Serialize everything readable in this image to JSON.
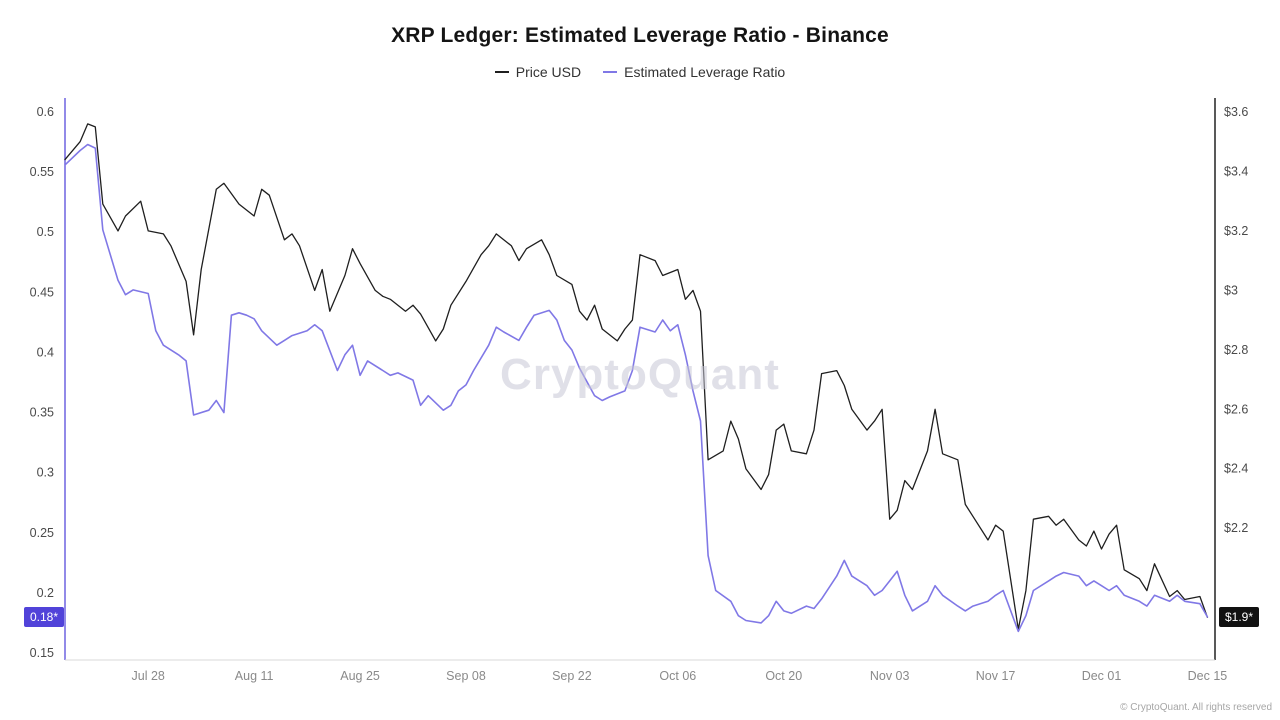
{
  "watermark": "CryptoQuant",
  "footer": "© CryptoQuant. All rights reserved",
  "left_value_tag": {
    "label": "0.18*",
    "value": 0.18,
    "color": "#5143d9"
  },
  "right_value_tag": {
    "label": "$1.9*",
    "value": 1.9,
    "color": "#111111"
  },
  "colors": {
    "price_line": "#1f1f1f",
    "leverage_line": "#8078e6",
    "left_axis_spine": "#6f63e0",
    "right_axis_spine": "#222222",
    "bottom_axis_line": "#d8d8d8",
    "tick_label": "#4a4a4a",
    "x_tick_label": "#8a8a8a"
  },
  "chart_data": {
    "type": "line",
    "title": "XRP Ledger: Estimated Leverage Ratio - Binance",
    "legend_position": "top-center",
    "grid": false,
    "x_axis": {
      "min": 0,
      "max": 152,
      "unit": "days from chart start (~Jul 17) to end (~Dec 17)",
      "ticks": [
        {
          "v": 11,
          "label": "Jul 28"
        },
        {
          "v": 25,
          "label": "Aug 11"
        },
        {
          "v": 39,
          "label": "Aug 25"
        },
        {
          "v": 53,
          "label": "Sep 08"
        },
        {
          "v": 67,
          "label": "Sep 22"
        },
        {
          "v": 81,
          "label": "Oct 06"
        },
        {
          "v": 95,
          "label": "Oct 20"
        },
        {
          "v": 109,
          "label": "Nov 03"
        },
        {
          "v": 123,
          "label": "Nov 17"
        },
        {
          "v": 137,
          "label": "Dec 01"
        },
        {
          "v": 151,
          "label": "Dec 15"
        }
      ]
    },
    "left_axis": {
      "title": "Estimated Leverage Ratio",
      "min": 0.15,
      "max": 0.6,
      "ticks": [
        {
          "v": 0.6,
          "label": "0.6"
        },
        {
          "v": 0.55,
          "label": "0.55"
        },
        {
          "v": 0.5,
          "label": "0.5"
        },
        {
          "v": 0.45,
          "label": "0.45"
        },
        {
          "v": 0.4,
          "label": "0.4"
        },
        {
          "v": 0.35,
          "label": "0.35"
        },
        {
          "v": 0.3,
          "label": "0.3"
        },
        {
          "v": 0.25,
          "label": "0.25"
        },
        {
          "v": 0.2,
          "label": "0.2"
        },
        {
          "v": 0.15,
          "label": "0.15"
        }
      ]
    },
    "right_axis": {
      "title": "Price USD",
      "min": 1.78,
      "max": 3.6,
      "ticks": [
        {
          "v": 3.6,
          "label": "$3.6"
        },
        {
          "v": 3.4,
          "label": "$3.4"
        },
        {
          "v": 3.2,
          "label": "$3.2"
        },
        {
          "v": 3.0,
          "label": "$3"
        },
        {
          "v": 2.8,
          "label": "$2.8"
        },
        {
          "v": 2.6,
          "label": "$2.6"
        },
        {
          "v": 2.4,
          "label": "$2.4"
        },
        {
          "v": 2.2,
          "label": "$2.2"
        }
      ]
    },
    "series": [
      {
        "name": "Price USD",
        "axis": "right",
        "color": "#1f1f1f",
        "width": 1.3,
        "current_value_label": "$1.9*",
        "points": [
          [
            0,
            3.44
          ],
          [
            2,
            3.5
          ],
          [
            3,
            3.56
          ],
          [
            4,
            3.55
          ],
          [
            5,
            3.29
          ],
          [
            7,
            3.2
          ],
          [
            8,
            3.25
          ],
          [
            10,
            3.3
          ],
          [
            11,
            3.2
          ],
          [
            13,
            3.19
          ],
          [
            14,
            3.15
          ],
          [
            16,
            3.03
          ],
          [
            17,
            2.85
          ],
          [
            18,
            3.07
          ],
          [
            20,
            3.34
          ],
          [
            21,
            3.36
          ],
          [
            23,
            3.29
          ],
          [
            25,
            3.25
          ],
          [
            26,
            3.34
          ],
          [
            27,
            3.32
          ],
          [
            29,
            3.17
          ],
          [
            30,
            3.19
          ],
          [
            31,
            3.15
          ],
          [
            33,
            3.0
          ],
          [
            34,
            3.07
          ],
          [
            35,
            2.93
          ],
          [
            37,
            3.05
          ],
          [
            38,
            3.14
          ],
          [
            39,
            3.09
          ],
          [
            41,
            3.0
          ],
          [
            42,
            2.98
          ],
          [
            43,
            2.97
          ],
          [
            45,
            2.93
          ],
          [
            46,
            2.95
          ],
          [
            47,
            2.92
          ],
          [
            49,
            2.83
          ],
          [
            50,
            2.87
          ],
          [
            51,
            2.95
          ],
          [
            53,
            3.03
          ],
          [
            55,
            3.12
          ],
          [
            56,
            3.15
          ],
          [
            57,
            3.19
          ],
          [
            59,
            3.15
          ],
          [
            60,
            3.1
          ],
          [
            61,
            3.14
          ],
          [
            63,
            3.17
          ],
          [
            64,
            3.12
          ],
          [
            65,
            3.05
          ],
          [
            67,
            3.02
          ],
          [
            68,
            2.93
          ],
          [
            69,
            2.9
          ],
          [
            70,
            2.95
          ],
          [
            71,
            2.87
          ],
          [
            73,
            2.83
          ],
          [
            74,
            2.87
          ],
          [
            75,
            2.9
          ],
          [
            76,
            3.12
          ],
          [
            78,
            3.1
          ],
          [
            79,
            3.05
          ],
          [
            81,
            3.07
          ],
          [
            82,
            2.97
          ],
          [
            83,
            3.0
          ],
          [
            84,
            2.93
          ],
          [
            85,
            2.43
          ],
          [
            87,
            2.46
          ],
          [
            88,
            2.56
          ],
          [
            89,
            2.5
          ],
          [
            90,
            2.4
          ],
          [
            92,
            2.33
          ],
          [
            93,
            2.38
          ],
          [
            94,
            2.53
          ],
          [
            95,
            2.55
          ],
          [
            96,
            2.46
          ],
          [
            98,
            2.45
          ],
          [
            99,
            2.53
          ],
          [
            100,
            2.72
          ],
          [
            102,
            2.73
          ],
          [
            103,
            2.68
          ],
          [
            104,
            2.6
          ],
          [
            106,
            2.53
          ],
          [
            107,
            2.56
          ],
          [
            108,
            2.6
          ],
          [
            109,
            2.23
          ],
          [
            110,
            2.26
          ],
          [
            111,
            2.36
          ],
          [
            112,
            2.33
          ],
          [
            114,
            2.46
          ],
          [
            115,
            2.6
          ],
          [
            116,
            2.45
          ],
          [
            118,
            2.43
          ],
          [
            119,
            2.28
          ],
          [
            120,
            2.24
          ],
          [
            122,
            2.16
          ],
          [
            123,
            2.21
          ],
          [
            124,
            2.19
          ],
          [
            126,
            1.86
          ],
          [
            127,
            1.99
          ],
          [
            128,
            2.23
          ],
          [
            130,
            2.24
          ],
          [
            131,
            2.21
          ],
          [
            132,
            2.23
          ],
          [
            134,
            2.16
          ],
          [
            135,
            2.14
          ],
          [
            136,
            2.19
          ],
          [
            137,
            2.13
          ],
          [
            138,
            2.18
          ],
          [
            139,
            2.21
          ],
          [
            140,
            2.06
          ],
          [
            142,
            2.03
          ],
          [
            143,
            1.99
          ],
          [
            144,
            2.08
          ],
          [
            146,
            1.97
          ],
          [
            147,
            1.99
          ],
          [
            148,
            1.96
          ],
          [
            150,
            1.97
          ],
          [
            151,
            1.9
          ]
        ]
      },
      {
        "name": "Estimated Leverage Ratio",
        "axis": "left",
        "color": "#8078e6",
        "width": 1.6,
        "current_value_label": "0.18*",
        "points": [
          [
            0,
            0.556
          ],
          [
            2,
            0.568
          ],
          [
            3,
            0.573
          ],
          [
            4,
            0.57
          ],
          [
            5,
            0.502
          ],
          [
            7,
            0.46
          ],
          [
            8,
            0.448
          ],
          [
            9,
            0.452
          ],
          [
            11,
            0.449
          ],
          [
            12,
            0.418
          ],
          [
            13,
            0.406
          ],
          [
            15,
            0.398
          ],
          [
            16,
            0.393
          ],
          [
            17,
            0.348
          ],
          [
            19,
            0.352
          ],
          [
            20,
            0.36
          ],
          [
            21,
            0.35
          ],
          [
            22,
            0.431
          ],
          [
            23,
            0.433
          ],
          [
            24,
            0.431
          ],
          [
            25,
            0.428
          ],
          [
            26,
            0.418
          ],
          [
            28,
            0.406
          ],
          [
            29,
            0.41
          ],
          [
            30,
            0.414
          ],
          [
            32,
            0.418
          ],
          [
            33,
            0.423
          ],
          [
            34,
            0.418
          ],
          [
            36,
            0.385
          ],
          [
            37,
            0.398
          ],
          [
            38,
            0.406
          ],
          [
            39,
            0.381
          ],
          [
            40,
            0.393
          ],
          [
            42,
            0.385
          ],
          [
            43,
            0.381
          ],
          [
            44,
            0.383
          ],
          [
            46,
            0.377
          ],
          [
            47,
            0.356
          ],
          [
            48,
            0.364
          ],
          [
            50,
            0.352
          ],
          [
            51,
            0.356
          ],
          [
            52,
            0.368
          ],
          [
            53,
            0.373
          ],
          [
            54,
            0.385
          ],
          [
            56,
            0.406
          ],
          [
            57,
            0.421
          ],
          [
            58,
            0.417
          ],
          [
            60,
            0.41
          ],
          [
            61,
            0.421
          ],
          [
            62,
            0.431
          ],
          [
            64,
            0.435
          ],
          [
            65,
            0.427
          ],
          [
            66,
            0.41
          ],
          [
            67,
            0.402
          ],
          [
            68,
            0.387
          ],
          [
            70,
            0.364
          ],
          [
            71,
            0.36
          ],
          [
            72,
            0.363
          ],
          [
            74,
            0.368
          ],
          [
            75,
            0.385
          ],
          [
            76,
            0.421
          ],
          [
            78,
            0.417
          ],
          [
            79,
            0.427
          ],
          [
            80,
            0.418
          ],
          [
            81,
            0.423
          ],
          [
            82,
            0.398
          ],
          [
            83,
            0.368
          ],
          [
            84,
            0.343
          ],
          [
            85,
            0.231
          ],
          [
            86,
            0.202
          ],
          [
            88,
            0.193
          ],
          [
            89,
            0.181
          ],
          [
            90,
            0.177
          ],
          [
            92,
            0.175
          ],
          [
            93,
            0.181
          ],
          [
            94,
            0.193
          ],
          [
            95,
            0.185
          ],
          [
            96,
            0.183
          ],
          [
            98,
            0.189
          ],
          [
            99,
            0.187
          ],
          [
            100,
            0.195
          ],
          [
            102,
            0.214
          ],
          [
            103,
            0.227
          ],
          [
            104,
            0.214
          ],
          [
            106,
            0.206
          ],
          [
            107,
            0.198
          ],
          [
            108,
            0.202
          ],
          [
            109,
            0.21
          ],
          [
            110,
            0.218
          ],
          [
            111,
            0.198
          ],
          [
            112,
            0.185
          ],
          [
            114,
            0.193
          ],
          [
            115,
            0.206
          ],
          [
            116,
            0.198
          ],
          [
            118,
            0.189
          ],
          [
            119,
            0.185
          ],
          [
            120,
            0.189
          ],
          [
            122,
            0.193
          ],
          [
            123,
            0.198
          ],
          [
            124,
            0.202
          ],
          [
            126,
            0.168
          ],
          [
            127,
            0.181
          ],
          [
            128,
            0.202
          ],
          [
            130,
            0.21
          ],
          [
            131,
            0.214
          ],
          [
            132,
            0.217
          ],
          [
            134,
            0.214
          ],
          [
            135,
            0.206
          ],
          [
            136,
            0.21
          ],
          [
            137,
            0.206
          ],
          [
            138,
            0.202
          ],
          [
            139,
            0.206
          ],
          [
            140,
            0.198
          ],
          [
            142,
            0.193
          ],
          [
            143,
            0.189
          ],
          [
            144,
            0.198
          ],
          [
            146,
            0.193
          ],
          [
            147,
            0.198
          ],
          [
            148,
            0.193
          ],
          [
            150,
            0.191
          ],
          [
            151,
            0.18
          ]
        ]
      }
    ]
  }
}
